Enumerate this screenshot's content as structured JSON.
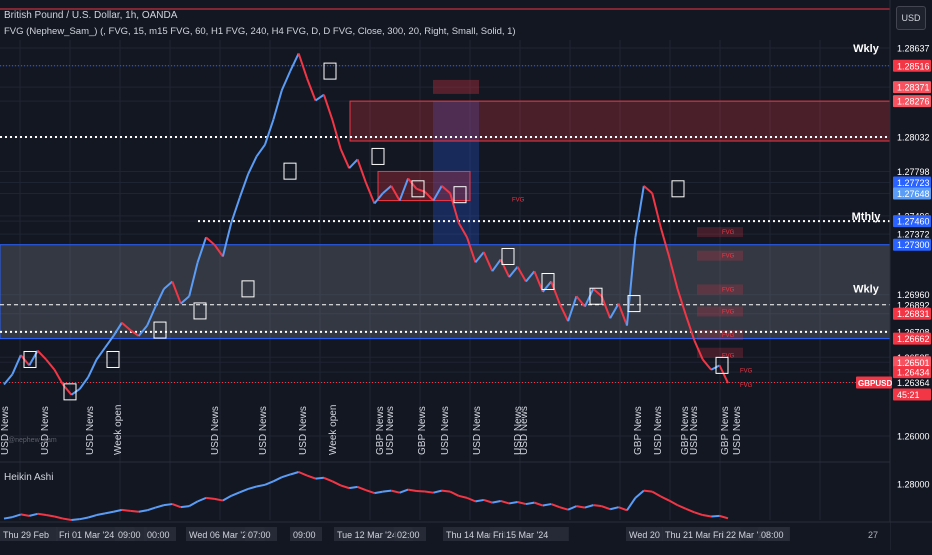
{
  "header": {
    "title": "British Pound / U.S. Dollar, 1h, OANDA",
    "indicator": "FVG (Nephew_Sam_) (, FVG, 15, m15 FVG, 60, H1 FVG, 240, H4 FVG, D, D FVG, Close, 300, 20, Right, Small, Solid, 1)"
  },
  "currency_button": "USD",
  "sub_pane_title": "Heikin Ashi",
  "page_number": "27",
  "chart_data": {
    "type": "line",
    "symbol": "GBPUSD",
    "price_axis_ticks": [
      "1.28637",
      "1.28516",
      "1.28371",
      "1.28276",
      "1.28032",
      "1.27798",
      "1.27723",
      "1.27648",
      "1.27496",
      "1.27460",
      "1.27372",
      "1.27300",
      "1.26960",
      "1.26892",
      "1.26831",
      "1.26708",
      "1.26662",
      "1.26535",
      "1.26501",
      "1.26434",
      "1.26364",
      "1.26000"
    ],
    "current_price": "1.26364",
    "countdown": "45:21",
    "sub_pane_tick": "1.28000",
    "level_labels": [
      {
        "text": "Wkly",
        "price": 1.28637
      },
      {
        "text": "Mthly",
        "price": 1.27496
      },
      {
        "text": "Wkly",
        "price": 1.27003
      }
    ],
    "x_labels": [
      "Thu 29 Feb",
      "Fri 01 Mar '24",
      "09:00",
      "00:00",
      "Wed 06 Mar '24",
      "07:00",
      "09:00",
      "Tue 12 Mar '24",
      "02:00",
      "Thu 14 Mar '24",
      "Fri 15 Mar '24",
      "Wed 20",
      "Thu 21 Mar '24",
      "Fri 22 Mar '24",
      "08:00"
    ],
    "news_labels": [
      {
        "text": "USD News",
        "x": 8
      },
      {
        "text": "USD News",
        "x": 48
      },
      {
        "text": "USD News",
        "x": 93
      },
      {
        "text": "Week open",
        "x": 121
      },
      {
        "text": "USD News",
        "x": 218
      },
      {
        "text": "USD News",
        "x": 266
      },
      {
        "text": "USD News",
        "x": 306
      },
      {
        "text": "Week open",
        "x": 336
      },
      {
        "text": "GBP News",
        "x": 383
      },
      {
        "text": "USD News",
        "x": 393
      },
      {
        "text": "GBP News",
        "x": 425
      },
      {
        "text": "USD News",
        "x": 448
      },
      {
        "text": "USD News",
        "x": 480
      },
      {
        "text": "USD News",
        "x": 521
      },
      {
        "text": "USD News",
        "x": 527
      },
      {
        "text": "GBP News",
        "x": 641
      },
      {
        "text": "USD News",
        "x": 661
      },
      {
        "text": "GBP News",
        "x": 688
      },
      {
        "text": "USD News",
        "x": 697
      },
      {
        "text": "GBP News",
        "x": 728
      },
      {
        "text": "USD News",
        "x": 740
      }
    ],
    "fvg_label": "FVG",
    "watermark": "@nephew_sam",
    "series": [
      {
        "values": [
          1.2635,
          1.2642,
          1.2655,
          1.2648,
          1.2658,
          1.2652,
          1.2645,
          1.2635,
          1.2628,
          1.2632,
          1.264,
          1.2652,
          1.266,
          1.2668,
          1.2677,
          1.2672,
          1.2668,
          1.2675,
          1.2688,
          1.27,
          1.2705,
          1.269,
          1.2695,
          1.2718,
          1.2735,
          1.273,
          1.2722,
          1.2745,
          1.2762,
          1.2778,
          1.279,
          1.2798,
          1.2815,
          1.2835,
          1.2848,
          1.286,
          1.2843,
          1.2828,
          1.2832,
          1.2815,
          1.2795,
          1.2782,
          1.2788,
          1.2772,
          1.2758,
          1.2765,
          1.277,
          1.276,
          1.2775,
          1.2768,
          1.2766,
          1.276,
          1.277,
          1.2765,
          1.2745,
          1.2735,
          1.2718,
          1.2725,
          1.2712,
          1.272,
          1.2708,
          1.2715,
          1.2705,
          1.2712,
          1.2698,
          1.2705,
          1.269,
          1.2678,
          1.2695,
          1.2688,
          1.27,
          1.2695,
          1.268,
          1.269,
          1.2675,
          1.2735,
          1.277,
          1.2765,
          1.2742,
          1.2722,
          1.27,
          1.2682,
          1.2665,
          1.2652,
          1.2645,
          1.2648,
          1.2636
        ]
      }
    ]
  }
}
